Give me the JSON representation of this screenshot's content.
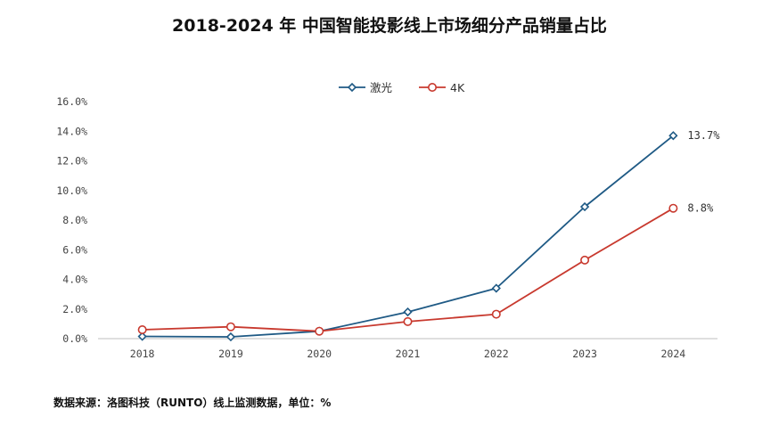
{
  "chart_data": {
    "type": "line",
    "title": "2018-2024 年 中国智能投影线上市场细分产品销量占比",
    "categories": [
      "2018",
      "2019",
      "2020",
      "2021",
      "2022",
      "2023",
      "2024"
    ],
    "series": [
      {
        "name": "激光",
        "values": [
          0.15,
          0.12,
          0.5,
          1.8,
          3.4,
          8.9,
          13.7
        ],
        "color": "#1f5a85",
        "marker": "diamond"
      },
      {
        "name": "4K",
        "values": [
          0.6,
          0.8,
          0.5,
          1.15,
          1.65,
          5.3,
          8.8
        ],
        "color": "#c8392e",
        "marker": "circle"
      }
    ],
    "data_labels": [
      {
        "series": 0,
        "index": 6,
        "text": "13.7%"
      },
      {
        "series": 1,
        "index": 6,
        "text": "8.8%"
      }
    ],
    "ylim": [
      0,
      16
    ],
    "yticks": [
      "0.0%",
      "2.0%",
      "4.0%",
      "6.0%",
      "8.0%",
      "10.0%",
      "12.0%",
      "14.0%",
      "16.0%"
    ],
    "ytick_values": [
      0,
      2,
      4,
      6,
      8,
      10,
      12,
      14,
      16
    ],
    "legend_position": "top-center",
    "grid": false,
    "axis_color": "#bfbfbf"
  },
  "source_note": "数据来源：洛图科技（RUNTO）线上监测数据，单位：%"
}
